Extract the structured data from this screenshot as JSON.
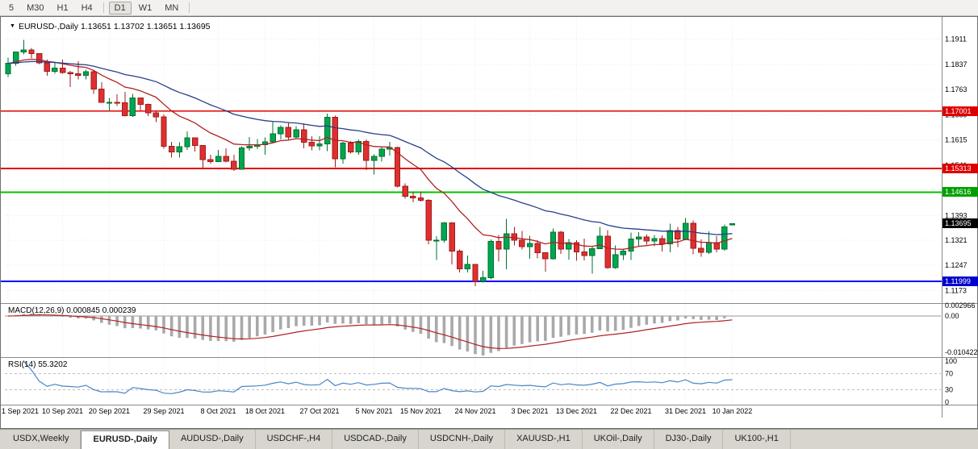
{
  "toolbar": {
    "timeframe_buttons": [
      "5",
      "M30",
      "H1",
      "H4",
      "D1",
      "W1",
      "MN"
    ],
    "active_timeframe": "D1"
  },
  "chart": {
    "marker": "▼",
    "symbol": "EURUSD-",
    "period": "Daily",
    "title_line": "EURUSD-,Daily 1.13651 1.13702 1.13651 1.13695",
    "open": "1.13651",
    "high": "1.13702",
    "low": "1.13651",
    "close": "1.13695"
  },
  "price_scale": {
    "ticks": [
      "1.1911",
      "1.1837",
      "1.1763",
      "1.1689",
      "1.1615",
      "1.1541",
      "1.1467",
      "1.1393",
      "1.1321",
      "1.1247",
      "1.1173"
    ],
    "badges": [
      {
        "value": "1.17001",
        "color": "#dd0000"
      },
      {
        "value": "1.15313",
        "color": "#dd0000"
      },
      {
        "value": "1.14616",
        "color": "#00a000"
      },
      {
        "value": "1.13695",
        "color": "#000000"
      },
      {
        "value": "1.11999",
        "color": "#0000cc"
      }
    ]
  },
  "hlines": [
    {
      "price": 1.17001,
      "color": "#e00000",
      "width": 1.6
    },
    {
      "price": 1.15313,
      "color": "#e00000",
      "width": 1.6
    },
    {
      "price": 1.14616,
      "color": "#00c000",
      "width": 2
    },
    {
      "price": 1.11999,
      "color": "#0000ff",
      "width": 2
    }
  ],
  "chart_data": {
    "type": "candlestick",
    "title": "EURUSD-,Daily",
    "price_range": {
      "max": 1.196,
      "min": 1.115
    },
    "up_color": "#00a651",
    "up_border": "#00702f",
    "down_color": "#e02f2f",
    "down_border": "#9e1c1c",
    "ma_fast": {
      "period": 13,
      "color": "#b22222"
    },
    "ma_slow": {
      "period": 34,
      "color": "#27408b"
    },
    "x_ticks": [
      {
        "i": 0,
        "label": "1 Sep 2021"
      },
      {
        "i": 7,
        "label": "10 Sep 2021"
      },
      {
        "i": 13,
        "label": "20 Sep 2021"
      },
      {
        "i": 20,
        "label": "29 Sep 2021"
      },
      {
        "i": 27,
        "label": "8 Oct 2021"
      },
      {
        "i": 33,
        "label": "18 Oct 2021"
      },
      {
        "i": 40,
        "label": "27 Oct 2021"
      },
      {
        "i": 47,
        "label": "5 Nov 2021"
      },
      {
        "i": 53,
        "label": "15 Nov 2021"
      },
      {
        "i": 60,
        "label": "24 Nov 2021"
      },
      {
        "i": 67,
        "label": "3 Dec 2021"
      },
      {
        "i": 73,
        "label": "13 Dec 2021"
      },
      {
        "i": 80,
        "label": "22 Dec 2021"
      },
      {
        "i": 87,
        "label": "31 Dec 2021"
      },
      {
        "i": 93,
        "label": "10 Jan 2022"
      }
    ],
    "ohlc": [
      [
        1.181,
        1.1857,
        1.18,
        1.184
      ],
      [
        1.184,
        1.1875,
        1.1833,
        1.1873
      ],
      [
        1.1873,
        1.1909,
        1.1866,
        1.188
      ],
      [
        1.188,
        1.1885,
        1.1856,
        1.1869
      ],
      [
        1.1869,
        1.187,
        1.1838,
        1.1842
      ],
      [
        1.1842,
        1.1851,
        1.1804,
        1.1817
      ],
      [
        1.1817,
        1.1841,
        1.181,
        1.1826
      ],
      [
        1.1826,
        1.1851,
        1.181,
        1.1813
      ],
      [
        1.1813,
        1.1818,
        1.177,
        1.181
      ],
      [
        1.181,
        1.1846,
        1.1793,
        1.1805
      ],
      [
        1.1805,
        1.1822,
        1.1793,
        1.1815
      ],
      [
        1.1815,
        1.1821,
        1.175,
        1.1765
      ],
      [
        1.1765,
        1.1785,
        1.1724,
        1.1725
      ],
      [
        1.1725,
        1.1738,
        1.17,
        1.1726
      ],
      [
        1.1726,
        1.1749,
        1.1715,
        1.1724
      ],
      [
        1.1724,
        1.1756,
        1.1684,
        1.1687
      ],
      [
        1.1687,
        1.175,
        1.1683,
        1.1739
      ],
      [
        1.1739,
        1.174,
        1.1701,
        1.172
      ],
      [
        1.172,
        1.1722,
        1.1685,
        1.1695
      ],
      [
        1.1695,
        1.17,
        1.1668,
        1.1683
      ],
      [
        1.1683,
        1.169,
        1.1589,
        1.1597
      ],
      [
        1.1597,
        1.161,
        1.1563,
        1.158
      ],
      [
        1.158,
        1.1608,
        1.1563,
        1.1595
      ],
      [
        1.1595,
        1.164,
        1.1586,
        1.1621
      ],
      [
        1.1621,
        1.1622,
        1.1581,
        1.1599
      ],
      [
        1.1599,
        1.16,
        1.1529,
        1.1557
      ],
      [
        1.1557,
        1.1572,
        1.1546,
        1.1552
      ],
      [
        1.1552,
        1.1586,
        1.1551,
        1.1567
      ],
      [
        1.1567,
        1.1591,
        1.1549,
        1.1553
      ],
      [
        1.1553,
        1.1571,
        1.1524,
        1.1529
      ],
      [
        1.1529,
        1.1597,
        1.1529,
        1.1592
      ],
      [
        1.1592,
        1.1624,
        1.1583,
        1.1597
      ],
      [
        1.1597,
        1.1618,
        1.1588,
        1.1601
      ],
      [
        1.1601,
        1.1622,
        1.1572,
        1.161
      ],
      [
        1.161,
        1.1669,
        1.1609,
        1.1633
      ],
      [
        1.1633,
        1.1658,
        1.1617,
        1.1652
      ],
      [
        1.1652,
        1.1667,
        1.1617,
        1.1624
      ],
      [
        1.1624,
        1.1656,
        1.162,
        1.1645
      ],
      [
        1.1645,
        1.1664,
        1.1591,
        1.1608
      ],
      [
        1.1608,
        1.1626,
        1.1585,
        1.1598
      ],
      [
        1.1598,
        1.1626,
        1.1585,
        1.1603
      ],
      [
        1.1603,
        1.1692,
        1.1582,
        1.1682
      ],
      [
        1.1682,
        1.1686,
        1.1535,
        1.156
      ],
      [
        1.156,
        1.1609,
        1.1545,
        1.1606
      ],
      [
        1.1606,
        1.1612,
        1.1575,
        1.158
      ],
      [
        1.158,
        1.1616,
        1.1572,
        1.1611
      ],
      [
        1.1611,
        1.1616,
        1.1527,
        1.1555
      ],
      [
        1.1555,
        1.1573,
        1.1513,
        1.1567
      ],
      [
        1.1567,
        1.1597,
        1.1552,
        1.1588
      ],
      [
        1.1588,
        1.1609,
        1.1569,
        1.1593
      ],
      [
        1.1593,
        1.1595,
        1.1476,
        1.1479
      ],
      [
        1.1479,
        1.1488,
        1.1443,
        1.145
      ],
      [
        1.145,
        1.1464,
        1.1432,
        1.1445
      ],
      [
        1.1445,
        1.1464,
        1.1434,
        1.1438
      ],
      [
        1.1438,
        1.1441,
        1.1309,
        1.132
      ],
      [
        1.132,
        1.1332,
        1.1263,
        1.132
      ],
      [
        1.132,
        1.1374,
        1.1314,
        1.1372
      ],
      [
        1.1372,
        1.1374,
        1.125,
        1.1289
      ],
      [
        1.1289,
        1.1293,
        1.1226,
        1.1236
      ],
      [
        1.1236,
        1.1275,
        1.1226,
        1.125
      ],
      [
        1.125,
        1.1251,
        1.1186,
        1.12
      ],
      [
        1.12,
        1.123,
        1.1196,
        1.121
      ],
      [
        1.121,
        1.1323,
        1.1206,
        1.1317
      ],
      [
        1.1317,
        1.1336,
        1.1258,
        1.1294
      ],
      [
        1.1294,
        1.1383,
        1.1235,
        1.1339
      ],
      [
        1.1339,
        1.136,
        1.1305,
        1.132
      ],
      [
        1.132,
        1.1348,
        1.1293,
        1.1302
      ],
      [
        1.1302,
        1.1334,
        1.1266,
        1.1311
      ],
      [
        1.1311,
        1.132,
        1.1267,
        1.1284
      ],
      [
        1.1284,
        1.1285,
        1.1228,
        1.1266
      ],
      [
        1.1266,
        1.1355,
        1.1264,
        1.1344
      ],
      [
        1.1344,
        1.1348,
        1.128,
        1.1294
      ],
      [
        1.1294,
        1.1324,
        1.1264,
        1.1313
      ],
      [
        1.1313,
        1.132,
        1.126,
        1.1286
      ],
      [
        1.1286,
        1.1325,
        1.1261,
        1.1276
      ],
      [
        1.1276,
        1.1304,
        1.1222,
        1.1296
      ],
      [
        1.1296,
        1.136,
        1.1296,
        1.1332
      ],
      [
        1.1332,
        1.135,
        1.1236,
        1.124
      ],
      [
        1.124,
        1.1305,
        1.1237,
        1.1278
      ],
      [
        1.1278,
        1.1296,
        1.1262,
        1.1289
      ],
      [
        1.1289,
        1.1343,
        1.1262,
        1.1324
      ],
      [
        1.1324,
        1.1344,
        1.1303,
        1.133
      ],
      [
        1.133,
        1.1337,
        1.1308,
        1.1318
      ],
      [
        1.1318,
        1.1336,
        1.1303,
        1.1325
      ],
      [
        1.1325,
        1.1335,
        1.1287,
        1.131
      ],
      [
        1.131,
        1.1369,
        1.1285,
        1.1349
      ],
      [
        1.1349,
        1.136,
        1.13,
        1.1324
      ],
      [
        1.1324,
        1.1386,
        1.132,
        1.137
      ],
      [
        1.137,
        1.1379,
        1.1279,
        1.1297
      ],
      [
        1.1297,
        1.1323,
        1.1272,
        1.1285
      ],
      [
        1.1285,
        1.1347,
        1.128,
        1.1313
      ],
      [
        1.1313,
        1.1332,
        1.1285,
        1.1295
      ],
      [
        1.1295,
        1.1367,
        1.129,
        1.136
      ],
      [
        1.13651,
        1.13702,
        1.13651,
        1.13695
      ]
    ]
  },
  "indicators": {
    "macd": {
      "label_line": "MACD(12,26,9) 0.000845 0.000239",
      "fast": 12,
      "slow": 26,
      "signal": 9,
      "scale_ticks": [
        "0.002966",
        "0.00",
        "-0.010422"
      ],
      "histogram_color": "#a9a9a9",
      "signal_color": "#b22222"
    },
    "rsi": {
      "label_line": "RSI(14) 55.3202",
      "period": 14,
      "levels": [
        70,
        30
      ],
      "scale_ticks": [
        "100",
        "70",
        "30",
        "0"
      ],
      "line_color": "#4a86c8"
    }
  },
  "tabs": [
    "USDX,Weekly",
    "EURUSD-,Daily",
    "AUDUSD-,Daily",
    "USDCHF-,H4",
    "USDCAD-,Daily",
    "USDCNH-,Daily",
    "XAUUSD-,H1",
    "UKOil-,Daily",
    "DJ30-,Daily",
    "UK100-,H1"
  ],
  "active_tab": "EURUSD-,Daily"
}
